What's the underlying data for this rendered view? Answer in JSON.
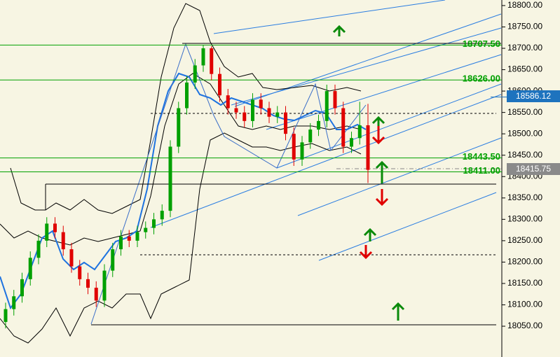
{
  "chart_data": {
    "type": "candlestick",
    "open": [
      18060,
      18090,
      18120,
      18160,
      18210,
      18250,
      18290,
      18270,
      18230,
      18190,
      18160,
      18140,
      18110,
      18180,
      18230,
      18260,
      18250,
      18270,
      18280,
      18300,
      18320,
      18470,
      18560,
      18620,
      18660,
      18700,
      18640,
      18590,
      18560,
      18550,
      18530,
      18580,
      18560,
      18540,
      18550,
      18500,
      18440,
      18480,
      18510,
      18530,
      18600,
      18560,
      18470,
      18490,
      18520
    ],
    "high": [
      18105,
      18135,
      18175,
      18225,
      18265,
      18305,
      18305,
      18285,
      18245,
      18205,
      18175,
      18155,
      18195,
      18245,
      18275,
      18275,
      18285,
      18295,
      18315,
      18335,
      18485,
      18575,
      18635,
      18675,
      18707.5,
      18705,
      18655,
      18605,
      18575,
      18565,
      18595,
      18595,
      18575,
      18565,
      18565,
      18515,
      18495,
      18525,
      18545,
      18615,
      18615,
      18575,
      18505,
      18575,
      18570
    ],
    "low": [
      18045,
      18075,
      18105,
      18145,
      18195,
      18235,
      18255,
      18215,
      18175,
      18145,
      18125,
      18095,
      18095,
      18165,
      18215,
      18235,
      18235,
      18255,
      18265,
      18285,
      18305,
      18455,
      18545,
      18605,
      18645,
      18625,
      18575,
      18545,
      18535,
      18515,
      18515,
      18545,
      18525,
      18525,
      18485,
      18425,
      18425,
      18465,
      18495,
      18515,
      18545,
      18455,
      18455,
      18475,
      18385
    ],
    "close": [
      18090,
      18120,
      18160,
      18210,
      18250,
      18290,
      18270,
      18230,
      18190,
      18160,
      18140,
      18110,
      18180,
      18230,
      18260,
      18250,
      18270,
      18280,
      18300,
      18320,
      18470,
      18560,
      18620,
      18660,
      18700,
      18640,
      18590,
      18560,
      18550,
      18530,
      18580,
      18560,
      18540,
      18550,
      18500,
      18440,
      18480,
      18510,
      18530,
      18600,
      18560,
      18470,
      18490,
      18520,
      18415.75
    ],
    "up_color": "#00a000",
    "down_color": "#e00000",
    "level_color": "#00a000",
    "ylim": [
      17978,
      18813
    ],
    "yticks": [
      {
        "value": 18050,
        "label": "18050.00"
      },
      {
        "value": 18100,
        "label": "18100.00"
      },
      {
        "value": 18150,
        "label": "18150.00"
      },
      {
        "value": 18200,
        "label": "18200.00"
      },
      {
        "value": 18250,
        "label": "18250.00"
      },
      {
        "value": 18300,
        "label": "18300.00"
      },
      {
        "value": 18350,
        "label": "18350.00"
      },
      {
        "value": 18400,
        "label": "18400.00"
      },
      {
        "value": 18450,
        "label": "18450.00"
      },
      {
        "value": 18500,
        "label": "18500.00"
      },
      {
        "value": 18550,
        "label": "18550.00"
      },
      {
        "value": 18600,
        "label": "18600.00"
      },
      {
        "value": 18650,
        "label": "18650.00"
      },
      {
        "value": 18700,
        "label": "18700.00"
      },
      {
        "value": 18750,
        "label": "18750.00"
      },
      {
        "value": 18800,
        "label": "18800.00"
      }
    ],
    "levels": [
      {
        "value": 18707.5,
        "label": "18707.50"
      },
      {
        "value": 18626,
        "label": "18626.00"
      },
      {
        "value": 18443.5,
        "label": "18443.50"
      },
      {
        "value": 18411,
        "label": "18411.00"
      }
    ],
    "last_price": {
      "value": 18586.12,
      "label": "18586.12"
    },
    "bid_price": {
      "value": 18415.75,
      "label": "18415.75"
    }
  }
}
